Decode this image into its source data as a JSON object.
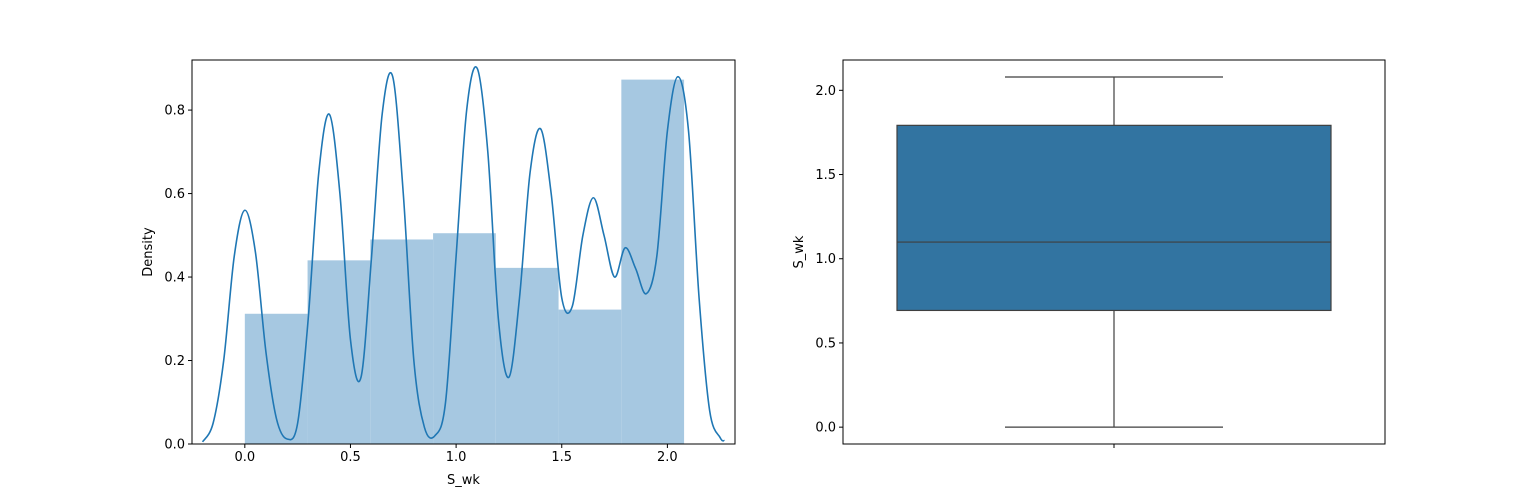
{
  "chart_data": [
    {
      "type": "bar",
      "subtype": "histogram-with-kde",
      "xlabel": "S_wk",
      "ylabel": "Density",
      "xlim": [
        -0.25,
        2.32
      ],
      "ylim": [
        0,
        0.92
      ],
      "xticks": [
        "0.0",
        "0.5",
        "1.0",
        "1.5",
        "2.0"
      ],
      "yticks": [
        "0.0",
        "0.2",
        "0.4",
        "0.6",
        "0.8"
      ],
      "bins": [
        {
          "start": 0.0,
          "end": 0.297,
          "value": 0.312
        },
        {
          "start": 0.297,
          "end": 0.594,
          "value": 0.44
        },
        {
          "start": 0.594,
          "end": 0.891,
          "value": 0.49
        },
        {
          "start": 0.891,
          "end": 1.188,
          "value": 0.505
        },
        {
          "start": 1.188,
          "end": 1.485,
          "value": 0.422
        },
        {
          "start": 1.485,
          "end": 1.782,
          "value": 0.322
        },
        {
          "start": 1.782,
          "end": 2.079,
          "value": 0.873
        }
      ],
      "kde": {
        "x": [
          -0.2,
          -0.15,
          -0.1,
          -0.05,
          0.0,
          0.05,
          0.1,
          0.15,
          0.2,
          0.25,
          0.3,
          0.35,
          0.4,
          0.45,
          0.5,
          0.55,
          0.6,
          0.65,
          0.7,
          0.75,
          0.8,
          0.85,
          0.9,
          0.95,
          1.0,
          1.05,
          1.1,
          1.15,
          1.2,
          1.25,
          1.3,
          1.35,
          1.4,
          1.45,
          1.5,
          1.55,
          1.6,
          1.65,
          1.7,
          1.75,
          1.8,
          1.85,
          1.9,
          1.95,
          2.0,
          2.05,
          2.1,
          2.15,
          2.2,
          2.25,
          2.27
        ],
        "y": [
          0.005,
          0.05,
          0.2,
          0.45,
          0.56,
          0.46,
          0.22,
          0.06,
          0.012,
          0.05,
          0.3,
          0.65,
          0.79,
          0.6,
          0.25,
          0.16,
          0.45,
          0.79,
          0.88,
          0.6,
          0.2,
          0.04,
          0.02,
          0.1,
          0.45,
          0.8,
          0.9,
          0.7,
          0.3,
          0.16,
          0.35,
          0.65,
          0.755,
          0.6,
          0.35,
          0.33,
          0.5,
          0.59,
          0.5,
          0.4,
          0.47,
          0.42,
          0.36,
          0.45,
          0.75,
          0.88,
          0.75,
          0.35,
          0.08,
          0.015,
          0.008
        ]
      },
      "colors": {
        "bar": "#a6c8e1",
        "line": "#1f77b4"
      }
    },
    {
      "type": "box",
      "ylabel": "S_wk",
      "ylim": [
        -0.1,
        2.18
      ],
      "yticks": [
        "0.0",
        "0.5",
        "1.0",
        "1.5",
        "2.0"
      ],
      "stats": {
        "min": 0.0,
        "q1": 0.693,
        "median": 1.099,
        "q3": 1.792,
        "max": 2.079
      },
      "colors": {
        "box": "#3274a1",
        "line": "#3f3f3f"
      }
    }
  ]
}
